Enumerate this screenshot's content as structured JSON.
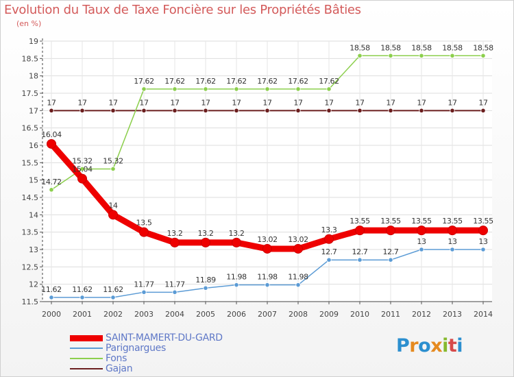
{
  "header": {
    "title": "Evolution du Taux de Taxe Foncière sur les Propriétés Bâties",
    "subtitle": "(en %)"
  },
  "logo": {
    "text": "Proxiti"
  },
  "chart_data": {
    "type": "line",
    "title": "Evolution du Taux de Taxe Foncière sur les Propriétés Bâties",
    "ylabel": "(en %)",
    "xlabel": "",
    "ylim": [
      11.5,
      19
    ],
    "y_ticks": [
      "11.5",
      "12",
      "12.5",
      "13",
      "13.5",
      "14",
      "14.5",
      "15",
      "15.5",
      "16",
      "16.5",
      "17",
      "17.5",
      "18",
      "18.5",
      "19"
    ],
    "x": [
      "2000",
      "2001",
      "2002",
      "2003",
      "2004",
      "2005",
      "2006",
      "2007",
      "2008",
      "2009",
      "2010",
      "2011",
      "2012",
      "2013",
      "2014"
    ],
    "grid": true,
    "legend_position": "bottom-left",
    "series": [
      {
        "name": "Gajan",
        "color": "#6b1e1e",
        "lineWidth": 2,
        "markerRadius": 3.2,
        "values": [
          17,
          17,
          17,
          17,
          17,
          17,
          17,
          17,
          17,
          17,
          17,
          17,
          17,
          17,
          17
        ],
        "labels": [
          "17",
          "17",
          "17",
          "17",
          "17",
          "17",
          "17",
          "17",
          "17",
          "17",
          "17",
          "17",
          "17",
          "17",
          "17"
        ]
      },
      {
        "name": "Fons",
        "color": "#8ccf4d",
        "lineWidth": 1.5,
        "markerRadius": 3.2,
        "values": [
          14.72,
          15.32,
          15.32,
          17.62,
          17.62,
          17.62,
          17.62,
          17.62,
          17.62,
          17.62,
          18.58,
          18.58,
          18.58,
          18.58,
          18.58
        ],
        "labels": [
          "14.72",
          "15.32",
          "15.32",
          "17.62",
          "17.62",
          "17.62",
          "17.62",
          "17.62",
          "17.62",
          "17.62",
          "18.58",
          "18.58",
          "18.58",
          "18.58",
          "18.58"
        ]
      },
      {
        "name": "Parignargues",
        "color": "#5b9bd5",
        "lineWidth": 1.5,
        "markerRadius": 3.2,
        "values": [
          11.62,
          11.62,
          11.62,
          11.77,
          11.77,
          11.89,
          11.98,
          11.98,
          11.98,
          12.7,
          12.7,
          12.7,
          13,
          13,
          13
        ],
        "labels": [
          "11.62",
          "11.62",
          "11.62",
          "11.77",
          "11.77",
          "11.89",
          "11.98",
          "11.98",
          "11.98",
          "12.7",
          "12.7",
          "12.7",
          "13",
          "13",
          "13"
        ]
      },
      {
        "name": "SAINT-MAMERT-DU-GARD",
        "color": "#ee0000",
        "lineWidth": 9,
        "markerRadius": 6.5,
        "values": [
          16.04,
          15.04,
          14,
          13.5,
          13.2,
          13.2,
          13.2,
          13.02,
          13.02,
          13.3,
          13.55,
          13.55,
          13.55,
          13.55,
          13.55
        ],
        "labels": [
          "16.04",
          "15.04",
          "14",
          "13.5",
          "13.2",
          "13.2",
          "13.2",
          "13.02",
          "13.02",
          "13.3",
          "13.55",
          "13.55",
          "13.55",
          "13.55",
          "13.55"
        ]
      }
    ],
    "legend": [
      "SAINT-MAMERT-DU-GARD",
      "Parignargues",
      "Fons",
      "Gajan"
    ]
  }
}
